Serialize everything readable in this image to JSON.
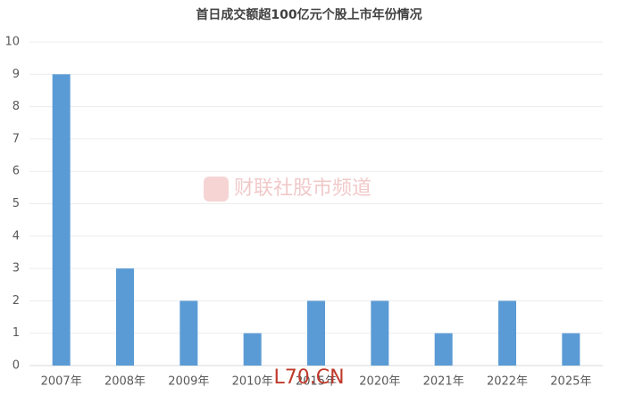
{
  "chart_data": {
    "type": "bar",
    "title": "首日成交额超100亿元个股上市年份情况",
    "categories": [
      "2007年",
      "2008年",
      "2009年",
      "2010年",
      "2015年",
      "2020年",
      "2021年",
      "2022年",
      "2025年"
    ],
    "values": [
      9,
      3,
      2,
      1,
      2,
      2,
      1,
      2,
      1
    ],
    "color": "#5b9bd5",
    "ylim": [
      0,
      10
    ],
    "yticks": [
      0,
      1,
      2,
      3,
      4,
      5,
      6,
      7,
      8,
      9,
      10
    ],
    "grid": true,
    "watermarks": [
      "财联社股市频道",
      "L70.CN"
    ]
  }
}
